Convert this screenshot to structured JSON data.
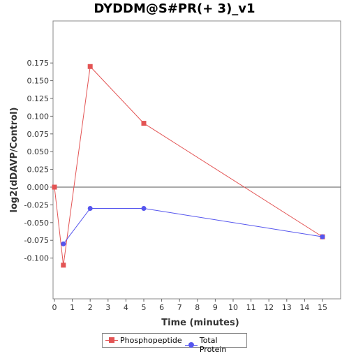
{
  "chart_data": {
    "type": "line",
    "title": "DYDDM@S#PR(+ 3)_v1",
    "xlabel": "Time (minutes)",
    "ylabel": "log2(dDAVP/Control)",
    "xlim": [
      0,
      15.5
    ],
    "ylim": [
      -0.125,
      0.185
    ],
    "x_ticks": [
      0,
      1,
      2,
      3,
      4,
      5,
      6,
      7,
      8,
      9,
      10,
      11,
      12,
      13,
      14,
      15
    ],
    "y_ticks": [
      -0.1,
      -0.075,
      -0.05,
      -0.025,
      0,
      0.025,
      0.05,
      0.075,
      0.1,
      0.125,
      0.15,
      0.175
    ],
    "y_tick_labels": [
      "-0.100",
      "-0.075",
      "-0.050",
      "-0.025",
      "0.000",
      "0.025",
      "0.050",
      "0.075",
      "0.100",
      "0.125",
      "0.150",
      "0.175"
    ],
    "zero_line": true,
    "grid": false,
    "legend_position": "bottom",
    "series": [
      {
        "name": "Phosphopeptide",
        "color": "#e35454",
        "marker": "square",
        "x": [
          0,
          0.5,
          2,
          5,
          15
        ],
        "y": [
          0.0,
          -0.11,
          0.17,
          0.09,
          -0.07
        ]
      },
      {
        "name": "Total Protein",
        "color": "#5555ee",
        "marker": "circle",
        "x": [
          0.5,
          2,
          5,
          15
        ],
        "y": [
          -0.08,
          -0.03,
          -0.03,
          -0.07
        ]
      }
    ]
  }
}
